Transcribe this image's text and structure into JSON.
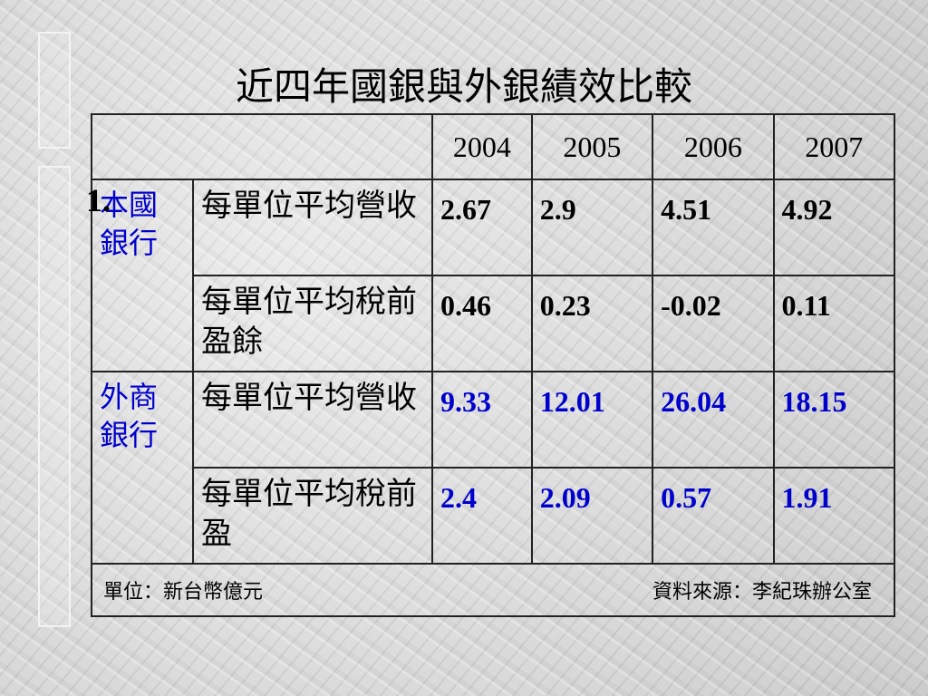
{
  "title": "近四年國銀與外銀績效比較",
  "marker": "1.",
  "table": {
    "header": [
      "2004",
      "2005",
      "2006",
      "2007"
    ],
    "groups": [
      {
        "label": "本國銀行",
        "rows": [
          {
            "metric": "每單位平均營收",
            "values": [
              "2.67",
              "2.9",
              "4.51",
              "4.92"
            ]
          },
          {
            "metric": "每單位平均稅前盈餘",
            "values": [
              "0.46",
              "0.23",
              "-0.02",
              "0.11"
            ]
          }
        ]
      },
      {
        "label": "外商銀行",
        "rows": [
          {
            "metric": "每單位平均營收",
            "values": [
              "9.33",
              "12.01",
              "26.04",
              "18.15"
            ]
          },
          {
            "metric": "每單位平均稅前盈",
            "values": [
              "2.4",
              "2.09",
              "0.57",
              "1.91"
            ]
          }
        ]
      }
    ]
  },
  "footer": {
    "unit": "單位：新台幣億元",
    "source": "資料來源：李紀珠辦公室"
  }
}
